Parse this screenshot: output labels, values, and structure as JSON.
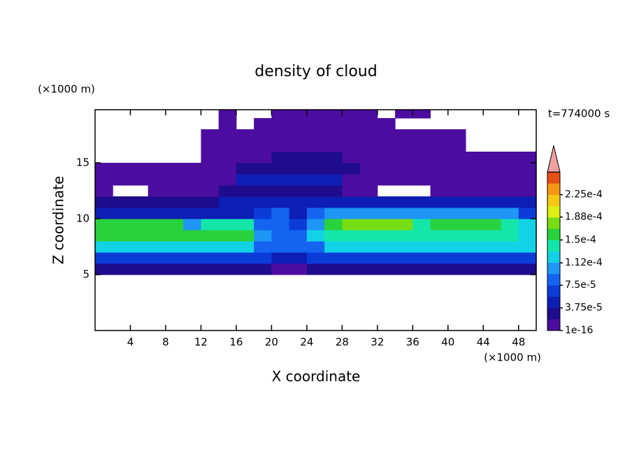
{
  "chart_data": {
    "type": "contourf",
    "title": "density of cloud",
    "x_label": "X coordinate",
    "y_label": "Z coordinate",
    "x_unit": "(×1000 m)",
    "y_unit": "(×1000 m)",
    "annotation": "t=774000 s",
    "xlim": [
      0,
      50
    ],
    "ylim": [
      0,
      19.75
    ],
    "xticks": [
      4,
      8,
      12,
      16,
      20,
      24,
      28,
      32,
      36,
      40,
      44,
      48
    ],
    "yticks": [
      5,
      10,
      15
    ],
    "x": [
      1,
      3,
      5,
      7,
      9,
      11,
      13,
      15,
      17,
      19,
      21,
      23,
      25,
      27,
      29,
      31,
      33,
      35,
      37,
      39,
      41,
      43,
      45,
      47,
      49
    ],
    "y": [
      0.5,
      1.5,
      2.5,
      3.5,
      4.5,
      5.5,
      6.5,
      7.5,
      8.5,
      9.5,
      10.5,
      11.5,
      12.5,
      13.5,
      14.5,
      15.5,
      16.5,
      17.5,
      18.5,
      19.5
    ],
    "z": [
      [
        null,
        null,
        null,
        null,
        null,
        null,
        null,
        null,
        null,
        null,
        null,
        null,
        null,
        null,
        null,
        null,
        null,
        null,
        null,
        null,
        null,
        null,
        null,
        null,
        null
      ],
      [
        null,
        null,
        null,
        null,
        null,
        null,
        null,
        null,
        null,
        null,
        null,
        null,
        null,
        null,
        null,
        null,
        null,
        null,
        null,
        null,
        null,
        null,
        null,
        null,
        null
      ],
      [
        null,
        null,
        null,
        null,
        null,
        null,
        null,
        null,
        null,
        null,
        null,
        null,
        null,
        null,
        null,
        null,
        null,
        null,
        null,
        null,
        null,
        null,
        null,
        null,
        null
      ],
      [
        null,
        null,
        null,
        null,
        null,
        null,
        null,
        null,
        null,
        null,
        null,
        null,
        null,
        null,
        null,
        null,
        null,
        null,
        null,
        null,
        null,
        null,
        null,
        null,
        null
      ],
      [
        null,
        null,
        null,
        null,
        null,
        null,
        null,
        null,
        null,
        null,
        null,
        null,
        null,
        null,
        null,
        null,
        null,
        null,
        null,
        null,
        null,
        null,
        null,
        null,
        null
      ],
      [
        3e-05,
        3e-05,
        3e-05,
        3e-05,
        3e-05,
        3e-05,
        3e-05,
        3e-05,
        3e-05,
        3e-05,
        1e-05,
        1e-05,
        3e-05,
        3e-05,
        3e-05,
        3e-05,
        3e-05,
        3e-05,
        3e-05,
        3e-05,
        3e-05,
        3e-05,
        3e-05,
        3e-05,
        3e-05
      ],
      [
        7e-05,
        7e-05,
        7e-05,
        7e-05,
        7e-05,
        7e-05,
        7e-05,
        7e-05,
        7e-05,
        7e-05,
        4e-05,
        4e-05,
        7e-05,
        7e-05,
        7e-05,
        7e-05,
        7e-05,
        7e-05,
        7e-05,
        7e-05,
        7e-05,
        7e-05,
        7e-05,
        7e-05,
        7e-05
      ],
      [
        0.00012,
        0.00012,
        0.00012,
        0.00012,
        0.00012,
        0.00012,
        0.00012,
        0.00012,
        0.00012,
        8e-05,
        8e-05,
        8e-05,
        8e-05,
        0.00012,
        0.00012,
        0.00012,
        0.00012,
        0.00012,
        0.00012,
        0.00012,
        0.00012,
        0.00012,
        0.00012,
        0.00012,
        0.00012
      ],
      [
        0.000155,
        0.000155,
        0.000155,
        0.000155,
        0.000155,
        0.000155,
        0.000155,
        0.000155,
        0.000155,
        0.00011,
        9e-05,
        8e-05,
        0.00012,
        0.000145,
        0.000145,
        0.000145,
        0.000145,
        0.000145,
        0.000145,
        0.000145,
        0.000145,
        0.000145,
        0.000145,
        0.000145,
        0.00013
      ],
      [
        0.00015,
        0.00015,
        0.00015,
        0.00015,
        0.00015,
        0.00011,
        0.00014,
        0.00014,
        0.00014,
        9e-05,
        8e-05,
        7e-05,
        0.00011,
        0.00015,
        0.00017,
        0.00017,
        0.00017,
        0.00017,
        0.00014,
        0.00016,
        0.00016,
        0.00016,
        0.00016,
        0.00014,
        0.00012
      ],
      [
        5e-05,
        5e-05,
        5e-05,
        5e-05,
        5e-05,
        5e-05,
        5e-05,
        5e-05,
        5e-05,
        7e-05,
        8e-05,
        5e-05,
        8e-05,
        0.0001,
        0.0001,
        0.0001,
        0.0001,
        0.0001,
        0.0001,
        0.0001,
        0.0001,
        0.0001,
        0.0001,
        0.0001,
        6e-05
      ],
      [
        3e-05,
        3e-05,
        3e-05,
        3e-05,
        3e-05,
        3e-05,
        3e-05,
        5e-05,
        5e-05,
        5e-05,
        5e-05,
        5e-05,
        5e-05,
        4e-05,
        4e-05,
        4e-05,
        4e-05,
        4e-05,
        4e-05,
        4e-05,
        4e-05,
        4e-05,
        4e-05,
        4e-05,
        4e-05
      ],
      [
        1e-05,
        null,
        null,
        1e-05,
        1e-05,
        1e-05,
        1e-05,
        3e-05,
        3e-05,
        3e-05,
        3e-05,
        3e-05,
        3e-05,
        3e-05,
        1e-05,
        1e-05,
        null,
        null,
        null,
        1e-05,
        1e-05,
        1e-05,
        1e-05,
        1e-05,
        1e-05
      ],
      [
        1e-05,
        1e-05,
        1e-05,
        1e-05,
        1e-05,
        1e-05,
        1e-05,
        1e-05,
        4e-05,
        4e-05,
        4e-05,
        4e-05,
        4e-05,
        4e-05,
        1e-05,
        1e-05,
        1e-05,
        1e-05,
        1e-05,
        1e-05,
        1e-05,
        1e-05,
        1e-05,
        1e-05,
        1e-05
      ],
      [
        5e-06,
        5e-06,
        5e-06,
        5e-06,
        5e-06,
        5e-06,
        5e-06,
        5e-06,
        3e-05,
        3e-05,
        3e-05,
        3e-05,
        3e-05,
        3e-05,
        3e-05,
        1.5e-05,
        1.5e-05,
        1.5e-05,
        5e-06,
        5e-06,
        5e-06,
        5e-06,
        5e-06,
        5e-06,
        5e-06
      ],
      [
        null,
        null,
        null,
        null,
        null,
        null,
        5e-06,
        5e-06,
        5e-06,
        5e-06,
        2e-05,
        2e-05,
        2e-05,
        2e-05,
        5e-06,
        5e-06,
        5e-06,
        5e-06,
        5e-06,
        5e-06,
        5e-06,
        5e-06,
        5e-06,
        5e-06,
        5e-06
      ],
      [
        null,
        null,
        null,
        null,
        null,
        null,
        5e-06,
        5e-06,
        5e-06,
        5e-06,
        5e-06,
        5e-06,
        5e-06,
        5e-06,
        5e-06,
        5e-06,
        5e-06,
        5e-06,
        5e-06,
        5e-06,
        5e-06,
        null,
        null,
        null,
        null
      ],
      [
        null,
        null,
        null,
        null,
        null,
        null,
        5e-06,
        5e-06,
        5e-06,
        5e-06,
        5e-06,
        5e-06,
        5e-06,
        5e-06,
        5e-06,
        5e-06,
        5e-06,
        5e-06,
        5e-06,
        5e-06,
        5e-06,
        null,
        null,
        null,
        null
      ],
      [
        null,
        null,
        null,
        null,
        null,
        null,
        null,
        5e-06,
        null,
        5e-06,
        5e-06,
        5e-06,
        5e-06,
        5e-06,
        5e-06,
        5e-06,
        5e-06,
        null,
        null,
        null,
        null,
        null,
        null,
        null,
        null
      ],
      [
        null,
        null,
        null,
        null,
        null,
        null,
        null,
        5e-06,
        null,
        null,
        5e-06,
        5e-06,
        5e-06,
        5e-06,
        5e-06,
        5e-06,
        null,
        5e-06,
        5e-06,
        null,
        null,
        null,
        null,
        null,
        null
      ]
    ],
    "levels": [
      1e-16,
      1.875e-05,
      3.75e-05,
      5.625e-05,
      7.5e-05,
      9.375e-05,
      0.0001125,
      0.00013125,
      0.00015,
      0.00016875,
      0.0001875,
      0.00020625,
      0.000225,
      0.00024375,
      0.0002625
    ],
    "colors": [
      "#4c0ca0",
      "#1e0c8c",
      "#0c1eb4",
      "#0c3cd8",
      "#1464f0",
      "#1e96f5",
      "#14d2e6",
      "#14e6aa",
      "#28d23c",
      "#78dc14",
      "#dcf014",
      "#f5c814",
      "#f59614",
      "#e65014"
    ],
    "over_color": "#f0a0a0",
    "cbar_ticks": [
      1e-16,
      {
        "value": 3.75e-05,
        "label": "3.75e-5"
      },
      {
        "value": 7.5e-05,
        "label": "7.5e-5"
      },
      {
        "value": 0.000112,
        "label": "1.12e-4"
      },
      {
        "value": 0.00015,
        "label": "1.5e-4"
      },
      {
        "value": 0.000188,
        "label": "1.88e-4"
      },
      {
        "value": 0.000225,
        "label": "2.25e-4"
      }
    ]
  }
}
